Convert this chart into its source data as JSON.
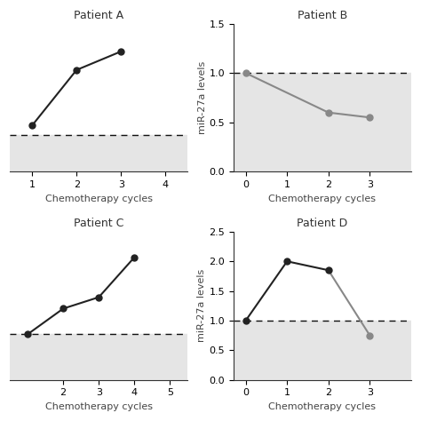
{
  "panels": [
    {
      "title": "Patient A",
      "x": [
        1,
        2,
        3
      ],
      "y": [
        0.5,
        1.1,
        1.3
      ],
      "color": "#222222",
      "xlim": [
        0.5,
        4.5
      ],
      "xticks": [
        1,
        2,
        3,
        4
      ],
      "ylim": [
        0.0,
        1.6
      ],
      "has_ylabel": false,
      "dashed_line": 0.4,
      "shaded_min": 0.0,
      "marker": "o",
      "markersize": 5
    },
    {
      "title": "Patient B",
      "x": [
        0,
        2,
        3
      ],
      "y": [
        1.0,
        0.6,
        0.55
      ],
      "color": "#888888",
      "xlim": [
        -0.3,
        4.0
      ],
      "xticks": [
        0,
        1,
        2,
        3
      ],
      "ylim": [
        0.0,
        1.5
      ],
      "yticks": [
        0.0,
        0.5,
        1.0,
        1.5
      ],
      "has_ylabel": true,
      "ylabel": "miR-27a levels",
      "dashed_line": 1.0,
      "shaded_min": 0.0,
      "marker": "o",
      "markersize": 5
    },
    {
      "title": "Patient C",
      "x": [
        1,
        2,
        3,
        4
      ],
      "y": [
        0.8,
        1.25,
        1.45,
        2.15
      ],
      "color": "#222222",
      "xlim": [
        0.5,
        5.5
      ],
      "xticks": [
        2,
        3,
        4,
        5
      ],
      "ylim": [
        0.0,
        2.6
      ],
      "has_ylabel": false,
      "dashed_line": 0.8,
      "shaded_min": 0.0,
      "marker": "o",
      "markersize": 5
    },
    {
      "title": "Patient D",
      "x": [
        0,
        1,
        2,
        3
      ],
      "y": [
        1.0,
        2.0,
        1.85,
        0.75
      ],
      "colors": [
        "#222222",
        "#222222",
        "#222222",
        "#888888"
      ],
      "color": "#222222",
      "xlim": [
        -0.3,
        4.0
      ],
      "xticks": [
        0,
        1,
        2,
        3
      ],
      "ylim": [
        0.0,
        2.5
      ],
      "yticks": [
        0.0,
        0.5,
        1.0,
        1.5,
        2.0,
        2.5
      ],
      "has_ylabel": true,
      "ylabel": "miR-27a levels",
      "dashed_line": 1.0,
      "shaded_min": 0.0,
      "marker": "o",
      "markersize": 5
    }
  ],
  "xlabel": "Chemotherapy cycles",
  "shaded_color": "#e5e5e5",
  "dashed_color": "#111111",
  "figure_bg": "#ffffff",
  "title_fontsize": 9,
  "label_fontsize": 8,
  "tick_fontsize": 8
}
